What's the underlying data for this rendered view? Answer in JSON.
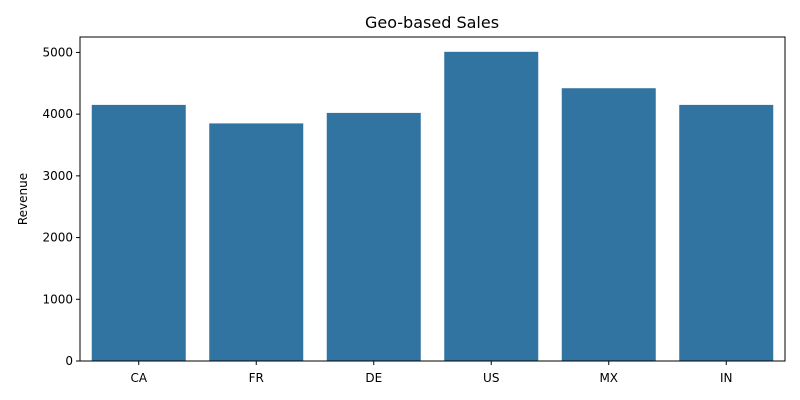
{
  "chart_data": {
    "type": "bar",
    "title": "Geo-based Sales",
    "xlabel": "",
    "ylabel": "Revenue",
    "categories": [
      "CA",
      "FR",
      "DE",
      "US",
      "MX",
      "IN"
    ],
    "values": [
      4150,
      3850,
      4020,
      5010,
      4420,
      4150
    ],
    "ylim": [
      0,
      5250
    ],
    "yticks": [
      0,
      1000,
      2000,
      3000,
      4000,
      5000
    ],
    "grid": false,
    "bar_color": "#3274a1"
  }
}
